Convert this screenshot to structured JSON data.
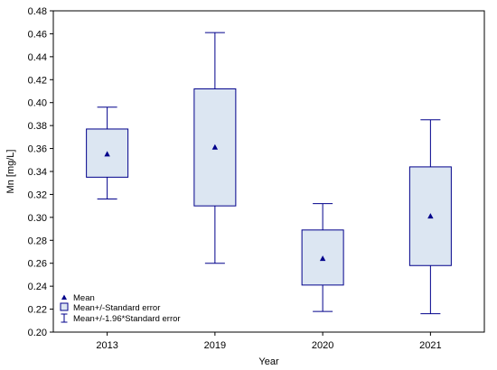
{
  "colors": {
    "line": "#00008B",
    "box_fill": "#DCE6F2",
    "marker": "#00008B",
    "frame": "#000000"
  },
  "chart_data": {
    "type": "boxplot",
    "xlabel": "Year",
    "ylabel": "Mn [mg/L]",
    "ylim": [
      0.2,
      0.48
    ],
    "yticks": [
      "0.20",
      "0.22",
      "0.24",
      "0.26",
      "0.28",
      "0.30",
      "0.32",
      "0.34",
      "0.36",
      "0.38",
      "0.40",
      "0.42",
      "0.44",
      "0.46",
      "0.48"
    ],
    "categories": [
      "2013",
      "2019",
      "2020",
      "2021"
    ],
    "series": [
      {
        "category": "2013",
        "mean": 0.355,
        "se_low": 0.335,
        "se_high": 0.377,
        "ci_low": 0.316,
        "ci_high": 0.396
      },
      {
        "category": "2019",
        "mean": 0.361,
        "se_low": 0.31,
        "se_high": 0.412,
        "ci_low": 0.26,
        "ci_high": 0.461
      },
      {
        "category": "2020",
        "mean": 0.264,
        "se_low": 0.241,
        "se_high": 0.289,
        "ci_low": 0.218,
        "ci_high": 0.312
      },
      {
        "category": "2021",
        "mean": 0.301,
        "se_low": 0.258,
        "se_high": 0.344,
        "ci_low": 0.216,
        "ci_high": 0.385
      }
    ],
    "legend": [
      "Mean",
      "Mean+/-Standard error",
      "Mean+/-1.96*Standard error"
    ],
    "legend_position": "bottom-left",
    "grid": false
  }
}
